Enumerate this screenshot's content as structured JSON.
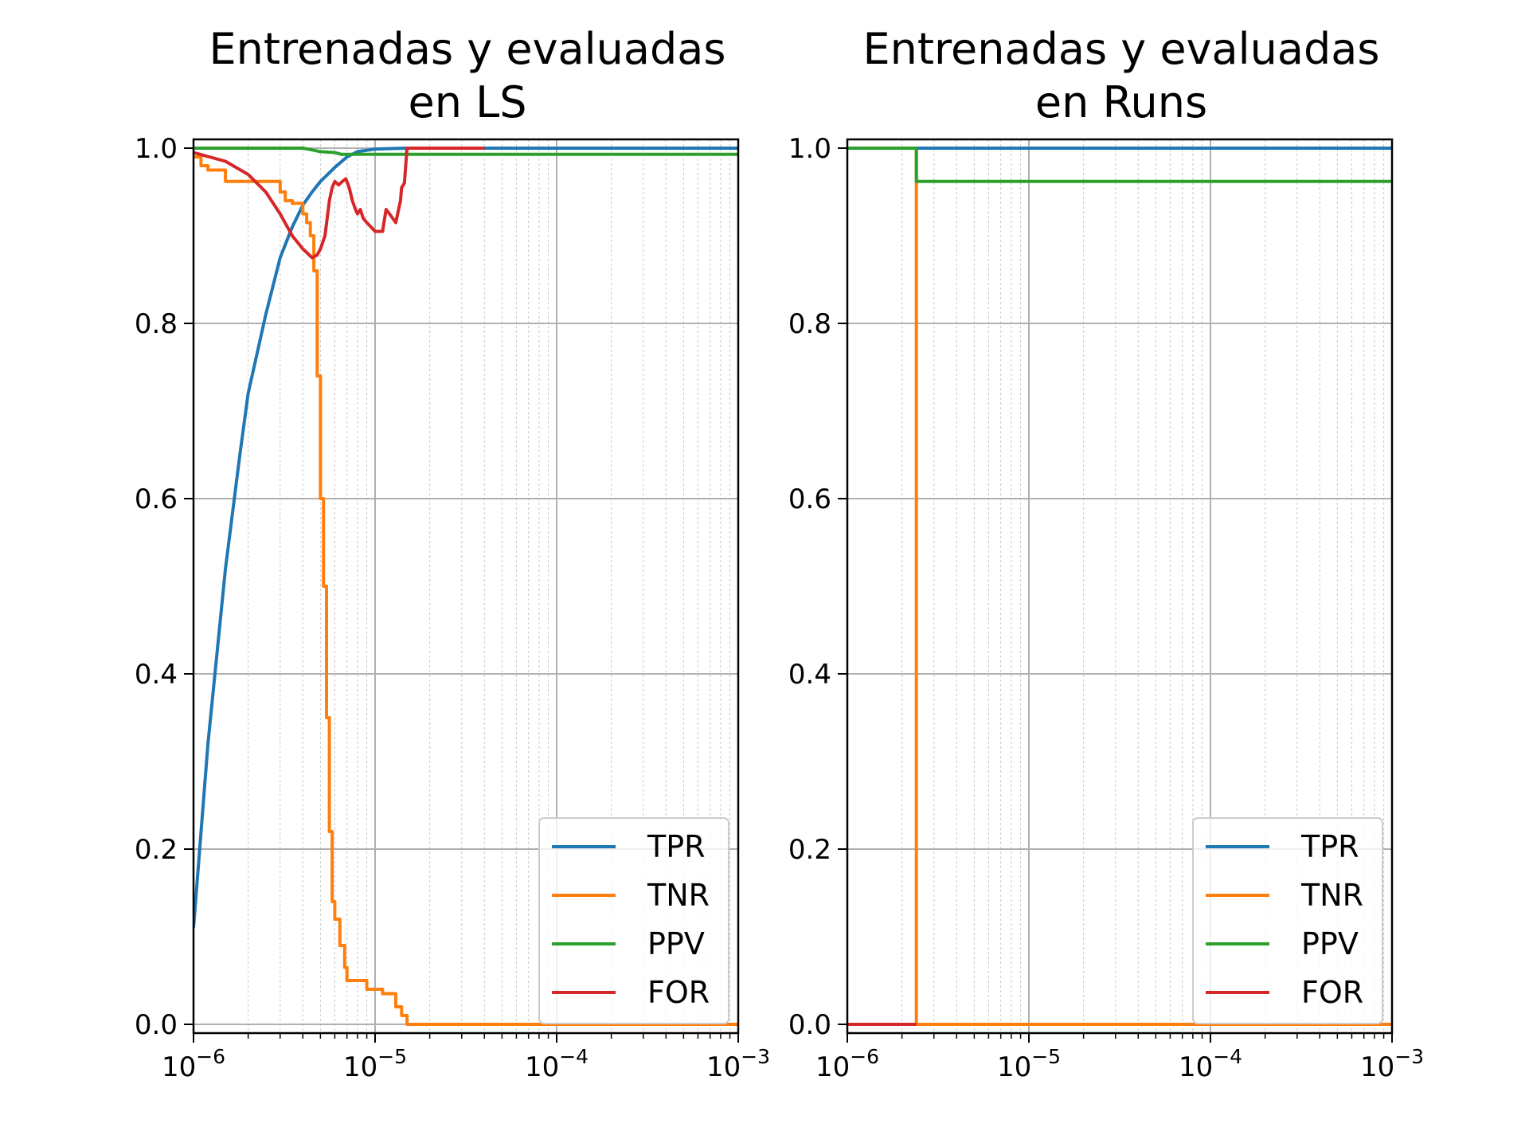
{
  "chart_data": [
    {
      "type": "line",
      "title_lines": [
        "Entrenadas y evaluadas",
        "en LS"
      ],
      "x_scale": "log",
      "xlim": [
        1e-06,
        0.001
      ],
      "ylim": [
        -0.01,
        1.01
      ],
      "x_tick_labels": [
        {
          "value": 1e-06,
          "base": "10",
          "exp": "−6"
        },
        {
          "value": 1e-05,
          "base": "10",
          "exp": "−5"
        },
        {
          "value": 0.0001,
          "base": "10",
          "exp": "−4"
        },
        {
          "value": 0.001,
          "base": "10",
          "exp": "−3"
        }
      ],
      "y_ticks": [
        0.0,
        0.2,
        0.4,
        0.6,
        0.8,
        1.0
      ],
      "y_tick_labels": [
        "0.0",
        "0.2",
        "0.4",
        "0.6",
        "0.8",
        "1.0"
      ],
      "grid": {
        "major": true,
        "minor_x": true
      },
      "legend": {
        "position": "lower-right"
      },
      "series": [
        {
          "name": "TPR",
          "color": "#1f77b4",
          "step": false,
          "points": [
            [
              1e-06,
              0.11
            ],
            [
              1.2e-06,
              0.32
            ],
            [
              1.5e-06,
              0.52
            ],
            [
              1.8e-06,
              0.65
            ],
            [
              2e-06,
              0.72
            ],
            [
              2.5e-06,
              0.81
            ],
            [
              3e-06,
              0.875
            ],
            [
              3.5e-06,
              0.91
            ],
            [
              4e-06,
              0.935
            ],
            [
              4.5e-06,
              0.95
            ],
            [
              5e-06,
              0.962
            ],
            [
              6e-06,
              0.978
            ],
            [
              7e-06,
              0.99
            ],
            [
              8e-06,
              0.996
            ],
            [
              1e-05,
              0.999
            ],
            [
              1.5e-05,
              1.0
            ],
            [
              0.001,
              1.0
            ]
          ]
        },
        {
          "name": "TNR",
          "color": "#ff7f0e",
          "step": true,
          "points": [
            [
              1e-06,
              0.99
            ],
            [
              1.1e-06,
              0.98
            ],
            [
              1.2e-06,
              0.975
            ],
            [
              1.5e-06,
              0.962
            ],
            [
              2e-06,
              0.962
            ],
            [
              2.7e-06,
              0.962
            ],
            [
              3e-06,
              0.95
            ],
            [
              3.2e-06,
              0.94
            ],
            [
              3.5e-06,
              0.937
            ],
            [
              3.8e-06,
              0.937
            ],
            [
              4e-06,
              0.925
            ],
            [
              4.2e-06,
              0.915
            ],
            [
              4.4e-06,
              0.9
            ],
            [
              4.6e-06,
              0.86
            ],
            [
              4.8e-06,
              0.74
            ],
            [
              5e-06,
              0.6
            ],
            [
              5.2e-06,
              0.5
            ],
            [
              5.4e-06,
              0.35
            ],
            [
              5.6e-06,
              0.22
            ],
            [
              5.8e-06,
              0.14
            ],
            [
              6e-06,
              0.12
            ],
            [
              6.4e-06,
              0.09
            ],
            [
              6.8e-06,
              0.065
            ],
            [
              7e-06,
              0.05
            ],
            [
              8e-06,
              0.05
            ],
            [
              9e-06,
              0.04
            ],
            [
              1.1e-05,
              0.035
            ],
            [
              1.3e-05,
              0.02
            ],
            [
              1.4e-05,
              0.01
            ],
            [
              1.5e-05,
              0.0
            ],
            [
              0.001,
              0.0
            ]
          ]
        },
        {
          "name": "PPV",
          "color": "#2ca02c",
          "step": false,
          "points": [
            [
              1e-06,
              1.0
            ],
            [
              4e-06,
              1.0
            ],
            [
              4.5e-06,
              0.998
            ],
            [
              5e-06,
              0.996
            ],
            [
              6e-06,
              0.995
            ],
            [
              6.5e-06,
              0.993
            ],
            [
              0.001,
              0.993
            ]
          ]
        },
        {
          "name": "FOR",
          "color": "#d62728",
          "step": false,
          "points": [
            [
              1e-06,
              0.995
            ],
            [
              1.5e-06,
              0.985
            ],
            [
              2e-06,
              0.97
            ],
            [
              2.5e-06,
              0.95
            ],
            [
              3e-06,
              0.925
            ],
            [
              3.5e-06,
              0.9
            ],
            [
              4e-06,
              0.885
            ],
            [
              4.5e-06,
              0.875
            ],
            [
              4.8e-06,
              0.878
            ],
            [
              5e-06,
              0.885
            ],
            [
              5.3e-06,
              0.9
            ],
            [
              5.6e-06,
              0.94
            ],
            [
              5.8e-06,
              0.955
            ],
            [
              6e-06,
              0.962
            ],
            [
              6.3e-06,
              0.958
            ],
            [
              6.6e-06,
              0.962
            ],
            [
              6.9e-06,
              0.965
            ],
            [
              7.2e-06,
              0.955
            ],
            [
              7.5e-06,
              0.94
            ],
            [
              7.8e-06,
              0.93
            ],
            [
              8e-06,
              0.925
            ],
            [
              8.3e-06,
              0.93
            ],
            [
              8.6e-06,
              0.92
            ],
            [
              9e-06,
              0.915
            ],
            [
              9.5e-06,
              0.91
            ],
            [
              1e-05,
              0.905
            ],
            [
              1.1e-05,
              0.905
            ],
            [
              1.15e-05,
              0.93
            ],
            [
              1.2e-05,
              0.925
            ],
            [
              1.3e-05,
              0.915
            ],
            [
              1.38e-05,
              0.94
            ],
            [
              1.4e-05,
              0.955
            ],
            [
              1.45e-05,
              0.96
            ],
            [
              1.5e-05,
              1.0
            ],
            [
              4e-05,
              1.0
            ]
          ]
        }
      ]
    },
    {
      "type": "line",
      "title_lines": [
        "Entrenadas y evaluadas",
        "en Runs"
      ],
      "x_scale": "log",
      "xlim": [
        1e-06,
        0.001
      ],
      "ylim": [
        -0.01,
        1.01
      ],
      "x_tick_labels": [
        {
          "value": 1e-06,
          "base": "10",
          "exp": "−6"
        },
        {
          "value": 1e-05,
          "base": "10",
          "exp": "−5"
        },
        {
          "value": 0.0001,
          "base": "10",
          "exp": "−4"
        },
        {
          "value": 0.001,
          "base": "10",
          "exp": "−3"
        }
      ],
      "y_ticks": [
        0.0,
        0.2,
        0.4,
        0.6,
        0.8,
        1.0
      ],
      "y_tick_labels": [
        "0.0",
        "0.2",
        "0.4",
        "0.6",
        "0.8",
        "1.0"
      ],
      "grid": {
        "major": true,
        "minor_x": true
      },
      "legend": {
        "position": "lower-right"
      },
      "series": [
        {
          "name": "TPR",
          "color": "#1f77b4",
          "step": false,
          "points": [
            [
              1e-06,
              1.0
            ],
            [
              0.001,
              1.0
            ]
          ]
        },
        {
          "name": "TNR",
          "color": "#ff7f0e",
          "step": true,
          "points": [
            [
              1e-06,
              1.0
            ],
            [
              2.4e-06,
              0.0
            ],
            [
              0.001,
              0.0
            ]
          ]
        },
        {
          "name": "PPV",
          "color": "#2ca02c",
          "step": true,
          "points": [
            [
              1e-06,
              1.0
            ],
            [
              2.4e-06,
              0.962
            ],
            [
              0.001,
              0.962
            ]
          ]
        },
        {
          "name": "FOR",
          "color": "#d62728",
          "step": false,
          "points": [
            [
              1e-06,
              0.0
            ],
            [
              2.4e-06,
              0.0
            ]
          ]
        }
      ]
    }
  ]
}
